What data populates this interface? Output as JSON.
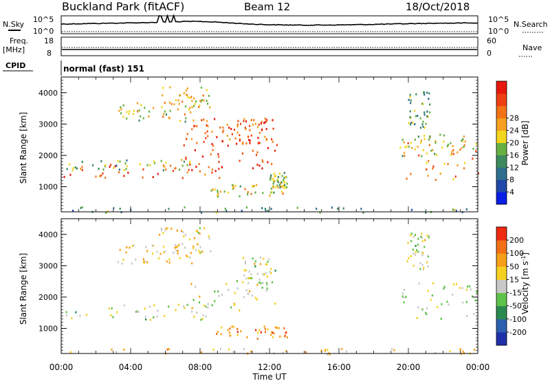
{
  "header": {
    "title": "Buckland Park (fitACF)",
    "beam": "Beam 12",
    "date": "18/Oct/2018"
  },
  "top_panels": {
    "nsky_label": "N.Sky",
    "nsky_ticks": [
      "10^5",
      "10^0"
    ],
    "nsearch_label": "N.Search",
    "nsearch_ticks": [
      "10^5",
      "10^0"
    ],
    "freq_label": "Freq.",
    "freq_unit": "[MHz]",
    "freq_ticks": [
      "18",
      "8"
    ],
    "nave_label": "Nave",
    "nave_ticks": [
      "60",
      "0"
    ],
    "cpid_label": "CPID",
    "cpid_text": "normal (fast) 151"
  },
  "chart_data": [
    {
      "type": "heatmap",
      "name": "power",
      "ylabel": "Slant Range [km]",
      "yticks": [
        1000,
        2000,
        3000,
        4000
      ],
      "ylim": [
        200,
        4500
      ],
      "xlim": [
        0,
        24
      ],
      "colorbar_label": "Power [dB]",
      "colorbar_ticks": [
        4,
        8,
        12,
        16,
        20,
        24,
        28
      ],
      "colorbar_colors": [
        "#0a1ee6",
        "#2147a8",
        "#2f6e8c",
        "#3d8a5e",
        "#66b042",
        "#f2d61c",
        "#f5a020",
        "#f27318",
        "#ee4012",
        "#e6170c"
      ],
      "regions": [
        {
          "t0": 0.1,
          "t1": 9.3,
          "r0": 1300,
          "r1": 1750,
          "level": 0.82
        },
        {
          "t0": 0.2,
          "t1": 7.5,
          "r0": 1550,
          "r1": 1900,
          "level": 0.45
        },
        {
          "t0": 7.0,
          "t1": 12.4,
          "r0": 1600,
          "r1": 2600,
          "level": 0.88
        },
        {
          "t0": 7.2,
          "t1": 10.5,
          "r0": 2500,
          "r1": 3200,
          "level": 0.75
        },
        {
          "t0": 10.4,
          "t1": 12.3,
          "r0": 2400,
          "r1": 3300,
          "level": 0.85
        },
        {
          "t0": 3.2,
          "t1": 7.8,
          "r0": 3100,
          "r1": 3700,
          "level": 0.55
        },
        {
          "t0": 5.6,
          "t1": 8.6,
          "r0": 3400,
          "r1": 4250,
          "level": 0.6
        },
        {
          "t0": 8.6,
          "t1": 13.0,
          "r0": 700,
          "r1": 1100,
          "level": 0.55
        },
        {
          "t0": 12.0,
          "t1": 13.0,
          "r0": 1000,
          "r1": 1500,
          "level": 0.5
        },
        {
          "t0": 19.2,
          "t1": 24.0,
          "r0": 1250,
          "r1": 2500,
          "level": 0.7
        },
        {
          "t0": 19.6,
          "t1": 23.9,
          "r0": 2000,
          "r1": 2700,
          "level": 0.5
        },
        {
          "t0": 19.9,
          "t1": 21.2,
          "r0": 2900,
          "r1": 4100,
          "level": 0.4
        },
        {
          "t0": 0.0,
          "t1": 24.0,
          "r0": 200,
          "r1": 380,
          "level": 0.35
        }
      ]
    },
    {
      "type": "heatmap",
      "name": "velocity",
      "xlabel": "Time UT",
      "ylabel": "Slant Range [km]",
      "xticks": [
        "00:00",
        "04:00",
        "08:00",
        "12:00",
        "16:00",
        "20:00",
        "00:00"
      ],
      "yticks": [
        1000,
        2000,
        3000,
        4000
      ],
      "ylim": [
        200,
        4500
      ],
      "xlim": [
        0,
        24
      ],
      "colorbar_label": "Velocity [m s^-1]",
      "colorbar_ticks": [
        200,
        100,
        50,
        15,
        -15,
        -50,
        -100,
        -200
      ],
      "colorbar_colors": [
        "#1e2fa8",
        "#2d5fb0",
        "#2a8a4e",
        "#5fc24a",
        "#c8c8c8",
        "#f5d020",
        "#f5a018",
        "#f27018",
        "#ee2a10"
      ],
      "regions": [
        {
          "t0": 0.1,
          "t1": 9.3,
          "r0": 1300,
          "r1": 1800,
          "level": 0.5
        },
        {
          "t0": 7.0,
          "t1": 12.4,
          "r0": 1600,
          "r1": 2600,
          "level": 0.55
        },
        {
          "t0": 10.4,
          "t1": 12.3,
          "r0": 2400,
          "r1": 3300,
          "level": 0.5
        },
        {
          "t0": 3.2,
          "t1": 7.8,
          "r0": 3100,
          "r1": 3700,
          "level": 0.6
        },
        {
          "t0": 5.6,
          "t1": 8.6,
          "r0": 3400,
          "r1": 4250,
          "level": 0.6
        },
        {
          "t0": 8.6,
          "t1": 13.0,
          "r0": 700,
          "r1": 1100,
          "level": 0.75
        },
        {
          "t0": 19.2,
          "t1": 24.0,
          "r0": 1250,
          "r1": 2500,
          "level": 0.5
        },
        {
          "t0": 19.9,
          "t1": 21.2,
          "r0": 2900,
          "r1": 4100,
          "level": 0.5
        },
        {
          "t0": 0.0,
          "t1": 24.0,
          "r0": 200,
          "r1": 380,
          "level": 0.65
        }
      ]
    }
  ]
}
